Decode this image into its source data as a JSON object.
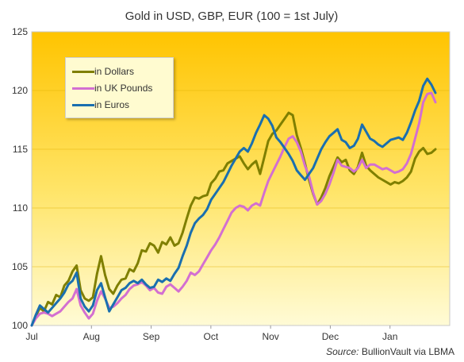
{
  "chart_data": {
    "type": "line",
    "title": "Gold in USD, GBP, EUR (100 = 1st July)",
    "ylim": [
      100,
      125
    ],
    "yticks": [
      100,
      105,
      110,
      115,
      120,
      125
    ],
    "x_labels": [
      "Jul",
      "Aug",
      "Sep",
      "Oct",
      "Nov",
      "Dec",
      "Jan"
    ],
    "grid": "horizontal",
    "legend_position": "top-left",
    "series": [
      {
        "name": "in Dollars",
        "color": "#7f7f00",
        "points": [
          [
            0,
            100.0
          ],
          [
            2,
            100.8
          ],
          [
            4,
            101.5
          ],
          [
            6,
            101.2
          ],
          [
            8,
            102.0
          ],
          [
            10,
            101.8
          ],
          [
            12,
            102.6
          ],
          [
            14,
            102.4
          ],
          [
            16,
            103.4
          ],
          [
            18,
            103.8
          ],
          [
            20,
            104.6
          ],
          [
            22,
            105.1
          ],
          [
            24,
            103.0
          ],
          [
            26,
            102.3
          ],
          [
            28,
            102.1
          ],
          [
            30,
            102.4
          ],
          [
            32,
            104.4
          ],
          [
            34,
            105.9
          ],
          [
            36,
            104.3
          ],
          [
            38,
            103.1
          ],
          [
            40,
            102.7
          ],
          [
            42,
            103.4
          ],
          [
            44,
            103.9
          ],
          [
            46,
            104.0
          ],
          [
            48,
            104.8
          ],
          [
            50,
            104.6
          ],
          [
            52,
            105.3
          ],
          [
            54,
            106.4
          ],
          [
            56,
            106.3
          ],
          [
            58,
            107.0
          ],
          [
            60,
            106.8
          ],
          [
            62,
            106.2
          ],
          [
            64,
            107.1
          ],
          [
            66,
            106.9
          ],
          [
            68,
            107.5
          ],
          [
            70,
            106.8
          ],
          [
            72,
            107.0
          ],
          [
            74,
            107.9
          ],
          [
            76,
            109.1
          ],
          [
            78,
            110.2
          ],
          [
            80,
            110.9
          ],
          [
            82,
            110.8
          ],
          [
            84,
            111.0
          ],
          [
            86,
            111.1
          ],
          [
            88,
            112.1
          ],
          [
            90,
            112.5
          ],
          [
            92,
            113.1
          ],
          [
            94,
            113.2
          ],
          [
            96,
            113.8
          ],
          [
            98,
            114.0
          ],
          [
            100,
            114.2
          ],
          [
            102,
            114.4
          ],
          [
            104,
            113.8
          ],
          [
            106,
            113.3
          ],
          [
            108,
            113.7
          ],
          [
            110,
            114.0
          ],
          [
            112,
            112.9
          ],
          [
            114,
            114.3
          ],
          [
            116,
            115.7
          ],
          [
            118,
            116.3
          ],
          [
            120,
            116.6
          ],
          [
            122,
            117.1
          ],
          [
            124,
            117.6
          ],
          [
            126,
            118.1
          ],
          [
            128,
            117.9
          ],
          [
            130,
            116.2
          ],
          [
            132,
            115.1
          ],
          [
            134,
            113.8
          ],
          [
            136,
            112.4
          ],
          [
            138,
            111.2
          ],
          [
            140,
            110.3
          ],
          [
            142,
            110.9
          ],
          [
            144,
            111.7
          ],
          [
            146,
            112.7
          ],
          [
            148,
            113.5
          ],
          [
            150,
            114.3
          ],
          [
            152,
            113.9
          ],
          [
            154,
            114.1
          ],
          [
            156,
            113.2
          ],
          [
            158,
            112.9
          ],
          [
            160,
            113.5
          ],
          [
            162,
            114.7
          ],
          [
            164,
            113.6
          ],
          [
            166,
            113.2
          ],
          [
            168,
            112.9
          ],
          [
            170,
            112.6
          ],
          [
            172,
            112.4
          ],
          [
            174,
            112.2
          ],
          [
            176,
            112.0
          ],
          [
            178,
            112.2
          ],
          [
            180,
            112.1
          ],
          [
            182,
            112.3
          ],
          [
            184,
            112.6
          ],
          [
            186,
            113.1
          ],
          [
            188,
            114.2
          ],
          [
            190,
            114.8
          ],
          [
            192,
            115.1
          ],
          [
            194,
            114.6
          ],
          [
            196,
            114.7
          ],
          [
            198,
            115.0
          ]
        ]
      },
      {
        "name": "in UK Pounds",
        "color": "#d36fd1",
        "points": [
          [
            0,
            100.0
          ],
          [
            2,
            100.6
          ],
          [
            4,
            101.0
          ],
          [
            6,
            101.1
          ],
          [
            8,
            101.0
          ],
          [
            10,
            100.8
          ],
          [
            12,
            101.0
          ],
          [
            14,
            101.2
          ],
          [
            16,
            101.6
          ],
          [
            18,
            102.0
          ],
          [
            20,
            102.3
          ],
          [
            22,
            103.1
          ],
          [
            24,
            101.7
          ],
          [
            26,
            101.1
          ],
          [
            28,
            100.6
          ],
          [
            30,
            101.0
          ],
          [
            32,
            102.1
          ],
          [
            34,
            102.9
          ],
          [
            36,
            102.3
          ],
          [
            38,
            101.5
          ],
          [
            40,
            101.6
          ],
          [
            42,
            101.9
          ],
          [
            44,
            102.3
          ],
          [
            46,
            102.6
          ],
          [
            48,
            103.1
          ],
          [
            50,
            103.4
          ],
          [
            52,
            103.5
          ],
          [
            54,
            103.7
          ],
          [
            56,
            103.4
          ],
          [
            58,
            103.0
          ],
          [
            60,
            103.2
          ],
          [
            62,
            102.8
          ],
          [
            64,
            102.7
          ],
          [
            66,
            103.3
          ],
          [
            68,
            103.5
          ],
          [
            70,
            103.2
          ],
          [
            72,
            102.9
          ],
          [
            74,
            103.3
          ],
          [
            76,
            103.8
          ],
          [
            78,
            104.5
          ],
          [
            80,
            104.3
          ],
          [
            82,
            104.6
          ],
          [
            84,
            105.2
          ],
          [
            86,
            105.8
          ],
          [
            88,
            106.4
          ],
          [
            90,
            106.9
          ],
          [
            92,
            107.5
          ],
          [
            94,
            108.2
          ],
          [
            96,
            108.9
          ],
          [
            98,
            109.6
          ],
          [
            100,
            110.0
          ],
          [
            102,
            110.2
          ],
          [
            104,
            110.1
          ],
          [
            106,
            109.8
          ],
          [
            108,
            110.2
          ],
          [
            110,
            110.4
          ],
          [
            112,
            110.2
          ],
          [
            114,
            111.3
          ],
          [
            116,
            112.3
          ],
          [
            118,
            113.0
          ],
          [
            120,
            113.7
          ],
          [
            122,
            114.4
          ],
          [
            124,
            115.2
          ],
          [
            126,
            115.9
          ],
          [
            128,
            116.1
          ],
          [
            130,
            115.6
          ],
          [
            132,
            114.8
          ],
          [
            134,
            113.6
          ],
          [
            136,
            112.7
          ],
          [
            138,
            111.3
          ],
          [
            140,
            110.3
          ],
          [
            142,
            110.6
          ],
          [
            144,
            111.2
          ],
          [
            146,
            112.0
          ],
          [
            148,
            113.0
          ],
          [
            150,
            114.1
          ],
          [
            152,
            113.6
          ],
          [
            154,
            113.5
          ],
          [
            156,
            113.4
          ],
          [
            158,
            113.1
          ],
          [
            160,
            113.4
          ],
          [
            162,
            114.1
          ],
          [
            164,
            113.4
          ],
          [
            166,
            113.7
          ],
          [
            168,
            113.7
          ],
          [
            170,
            113.5
          ],
          [
            172,
            113.3
          ],
          [
            174,
            113.4
          ],
          [
            176,
            113.2
          ],
          [
            178,
            113.0
          ],
          [
            180,
            113.1
          ],
          [
            182,
            113.3
          ],
          [
            184,
            113.8
          ],
          [
            186,
            114.6
          ],
          [
            188,
            115.9
          ],
          [
            190,
            117.2
          ],
          [
            192,
            119.0
          ],
          [
            194,
            119.7
          ],
          [
            196,
            119.8
          ],
          [
            198,
            119.0
          ]
        ]
      },
      {
        "name": "in Euros",
        "color": "#1a6faf",
        "points": [
          [
            0,
            100.0
          ],
          [
            2,
            100.9
          ],
          [
            4,
            101.7
          ],
          [
            6,
            101.4
          ],
          [
            8,
            101.1
          ],
          [
            10,
            101.5
          ],
          [
            12,
            101.9
          ],
          [
            14,
            102.3
          ],
          [
            16,
            102.8
          ],
          [
            18,
            103.5
          ],
          [
            20,
            103.8
          ],
          [
            22,
            104.5
          ],
          [
            24,
            102.3
          ],
          [
            26,
            101.6
          ],
          [
            28,
            101.2
          ],
          [
            30,
            101.7
          ],
          [
            32,
            103.0
          ],
          [
            34,
            103.6
          ],
          [
            36,
            102.4
          ],
          [
            38,
            101.2
          ],
          [
            40,
            101.8
          ],
          [
            42,
            102.4
          ],
          [
            44,
            103.0
          ],
          [
            46,
            103.2
          ],
          [
            48,
            103.6
          ],
          [
            50,
            103.8
          ],
          [
            52,
            103.6
          ],
          [
            54,
            103.9
          ],
          [
            56,
            103.5
          ],
          [
            58,
            103.2
          ],
          [
            60,
            103.3
          ],
          [
            62,
            103.9
          ],
          [
            64,
            103.7
          ],
          [
            66,
            104.0
          ],
          [
            68,
            103.8
          ],
          [
            70,
            104.4
          ],
          [
            72,
            104.9
          ],
          [
            74,
            105.9
          ],
          [
            76,
            106.8
          ],
          [
            78,
            107.9
          ],
          [
            80,
            108.7
          ],
          [
            82,
            109.1
          ],
          [
            84,
            109.4
          ],
          [
            86,
            109.9
          ],
          [
            88,
            110.7
          ],
          [
            90,
            111.2
          ],
          [
            92,
            111.7
          ],
          [
            94,
            112.2
          ],
          [
            96,
            112.9
          ],
          [
            98,
            113.6
          ],
          [
            100,
            114.2
          ],
          [
            102,
            114.8
          ],
          [
            104,
            115.1
          ],
          [
            106,
            114.8
          ],
          [
            108,
            115.5
          ],
          [
            110,
            116.4
          ],
          [
            112,
            117.1
          ],
          [
            114,
            117.9
          ],
          [
            116,
            117.6
          ],
          [
            118,
            117.0
          ],
          [
            120,
            116.0
          ],
          [
            122,
            115.6
          ],
          [
            124,
            115.1
          ],
          [
            126,
            114.6
          ],
          [
            128,
            114.0
          ],
          [
            130,
            113.2
          ],
          [
            132,
            112.8
          ],
          [
            134,
            112.4
          ],
          [
            136,
            112.9
          ],
          [
            138,
            113.4
          ],
          [
            140,
            114.2
          ],
          [
            142,
            115.0
          ],
          [
            144,
            115.6
          ],
          [
            146,
            116.1
          ],
          [
            148,
            116.4
          ],
          [
            150,
            116.7
          ],
          [
            152,
            115.8
          ],
          [
            154,
            115.6
          ],
          [
            156,
            115.1
          ],
          [
            158,
            115.3
          ],
          [
            160,
            115.9
          ],
          [
            162,
            117.1
          ],
          [
            164,
            116.5
          ],
          [
            166,
            115.9
          ],
          [
            168,
            115.7
          ],
          [
            170,
            115.4
          ],
          [
            172,
            115.2
          ],
          [
            174,
            115.5
          ],
          [
            176,
            115.8
          ],
          [
            178,
            115.9
          ],
          [
            180,
            116.0
          ],
          [
            182,
            115.8
          ],
          [
            184,
            116.4
          ],
          [
            186,
            117.3
          ],
          [
            188,
            118.3
          ],
          [
            190,
            119.1
          ],
          [
            192,
            120.4
          ],
          [
            194,
            121.0
          ],
          [
            196,
            120.5
          ],
          [
            198,
            119.8
          ]
        ]
      }
    ]
  },
  "source_prefix": "Source:",
  "source_text": "BullionVault via LBMA"
}
